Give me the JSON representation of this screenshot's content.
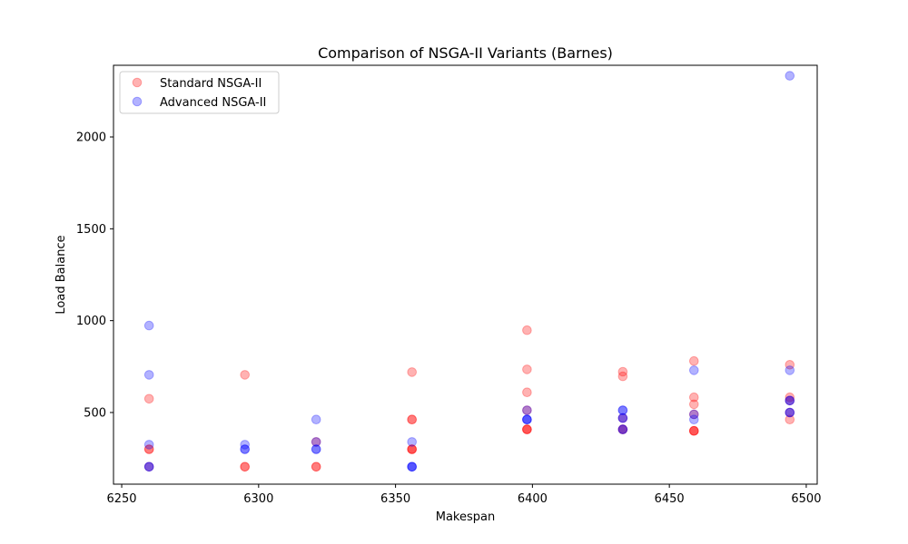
{
  "chart_data": {
    "type": "scatter",
    "title": "Comparison of NSGA-II Variants (Barnes)",
    "xlabel": "Makespan",
    "ylabel": "Load Balance",
    "xlim": [
      6247,
      6504
    ],
    "ylim": [
      110,
      2390
    ],
    "xticks": [
      6250,
      6300,
      6350,
      6400,
      6450,
      6500
    ],
    "yticks": [
      500,
      1000,
      1500,
      2000
    ],
    "grid": false,
    "legend_position": "top-left",
    "series": [
      {
        "name": "Standard NSGA-II",
        "color": "#ff0000",
        "alpha": 0.3,
        "points": [
          {
            "x": 6260,
            "y": 575
          },
          {
            "x": 6260,
            "y": 300
          },
          {
            "x": 6260,
            "y": 300
          },
          {
            "x": 6260,
            "y": 205
          },
          {
            "x": 6295,
            "y": 705
          },
          {
            "x": 6295,
            "y": 205
          },
          {
            "x": 6295,
            "y": 205
          },
          {
            "x": 6321,
            "y": 340
          },
          {
            "x": 6321,
            "y": 205
          },
          {
            "x": 6321,
            "y": 205
          },
          {
            "x": 6356,
            "y": 720
          },
          {
            "x": 6356,
            "y": 462
          },
          {
            "x": 6356,
            "y": 462
          },
          {
            "x": 6356,
            "y": 300
          },
          {
            "x": 6356,
            "y": 300
          },
          {
            "x": 6356,
            "y": 300
          },
          {
            "x": 6398,
            "y": 948
          },
          {
            "x": 6398,
            "y": 735
          },
          {
            "x": 6398,
            "y": 610
          },
          {
            "x": 6398,
            "y": 512
          },
          {
            "x": 6398,
            "y": 408
          },
          {
            "x": 6398,
            "y": 408
          },
          {
            "x": 6398,
            "y": 408
          },
          {
            "x": 6433,
            "y": 722
          },
          {
            "x": 6433,
            "y": 697
          },
          {
            "x": 6433,
            "y": 470
          },
          {
            "x": 6433,
            "y": 408
          },
          {
            "x": 6433,
            "y": 408
          },
          {
            "x": 6459,
            "y": 780
          },
          {
            "x": 6459,
            "y": 583
          },
          {
            "x": 6459,
            "y": 545
          },
          {
            "x": 6459,
            "y": 490
          },
          {
            "x": 6459,
            "y": 400
          },
          {
            "x": 6459,
            "y": 400
          },
          {
            "x": 6459,
            "y": 400
          },
          {
            "x": 6494,
            "y": 760
          },
          {
            "x": 6494,
            "y": 583
          },
          {
            "x": 6494,
            "y": 565
          },
          {
            "x": 6494,
            "y": 500
          },
          {
            "x": 6494,
            "y": 462
          }
        ]
      },
      {
        "name": "Advanced NSGA-II",
        "color": "#0000ff",
        "alpha": 0.3,
        "points": [
          {
            "x": 6260,
            "y": 973
          },
          {
            "x": 6260,
            "y": 705
          },
          {
            "x": 6260,
            "y": 325
          },
          {
            "x": 6260,
            "y": 205
          },
          {
            "x": 6260,
            "y": 205
          },
          {
            "x": 6295,
            "y": 325
          },
          {
            "x": 6295,
            "y": 300
          },
          {
            "x": 6295,
            "y": 300
          },
          {
            "x": 6321,
            "y": 462
          },
          {
            "x": 6321,
            "y": 340
          },
          {
            "x": 6321,
            "y": 300
          },
          {
            "x": 6321,
            "y": 300
          },
          {
            "x": 6356,
            "y": 340
          },
          {
            "x": 6356,
            "y": 205
          },
          {
            "x": 6356,
            "y": 205
          },
          {
            "x": 6356,
            "y": 205
          },
          {
            "x": 6398,
            "y": 512
          },
          {
            "x": 6398,
            "y": 462
          },
          {
            "x": 6398,
            "y": 462
          },
          {
            "x": 6398,
            "y": 462
          },
          {
            "x": 6433,
            "y": 512
          },
          {
            "x": 6433,
            "y": 512
          },
          {
            "x": 6433,
            "y": 470
          },
          {
            "x": 6433,
            "y": 470
          },
          {
            "x": 6433,
            "y": 408
          },
          {
            "x": 6433,
            "y": 408
          },
          {
            "x": 6459,
            "y": 730
          },
          {
            "x": 6459,
            "y": 490
          },
          {
            "x": 6459,
            "y": 462
          },
          {
            "x": 6494,
            "y": 2333
          },
          {
            "x": 6494,
            "y": 730
          },
          {
            "x": 6494,
            "y": 565
          },
          {
            "x": 6494,
            "y": 565
          },
          {
            "x": 6494,
            "y": 500
          },
          {
            "x": 6494,
            "y": 500
          }
        ]
      }
    ]
  }
}
